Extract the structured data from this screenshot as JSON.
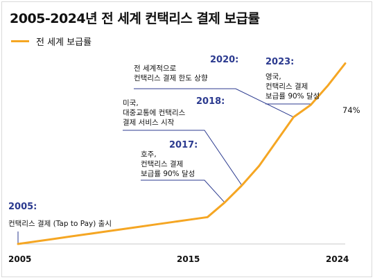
{
  "chart_data": {
    "type": "line",
    "title": "2005-2024년 전 세계 컨택리스 결제 보급률",
    "series": [
      {
        "name": "전 세계 보급률",
        "color": "#f5a623",
        "x": [
          2005,
          2006,
          2007,
          2008,
          2009,
          2010,
          2011,
          2012,
          2013,
          2014,
          2015,
          2016,
          2017,
          2018,
          2019,
          2020,
          2021,
          2022,
          2023,
          2024
        ],
        "values": [
          0,
          1,
          2,
          3,
          4,
          5,
          6,
          7,
          8,
          9,
          10,
          11,
          17,
          24,
          32,
          42,
          52,
          57,
          65,
          74
        ]
      }
    ],
    "x_ticks": [
      "2005",
      "2015",
      "2024"
    ],
    "xlim": [
      2005,
      2024
    ],
    "ylim": [
      0,
      100
    ],
    "end_label": "74%",
    "annotations": [
      {
        "year": "2005:",
        "lines": [
          "컨택리스 결제 (Tap to Pay) 출시"
        ]
      },
      {
        "year": "2017:",
        "lines": [
          "호주,",
          "컨택리스 결제",
          "보급률 90% 달성"
        ]
      },
      {
        "year": "2018:",
        "lines": [
          "미국,",
          "대중교통에 컨택리스",
          "결제 서비스 시작"
        ]
      },
      {
        "year": "2020:",
        "lines": [
          "전 세계적으로",
          "컨택리스 결제 한도 상향"
        ]
      },
      {
        "year": "2023:",
        "lines": [
          "영국,",
          "컨택리스 결제",
          "보급률 90% 달성"
        ]
      }
    ]
  }
}
